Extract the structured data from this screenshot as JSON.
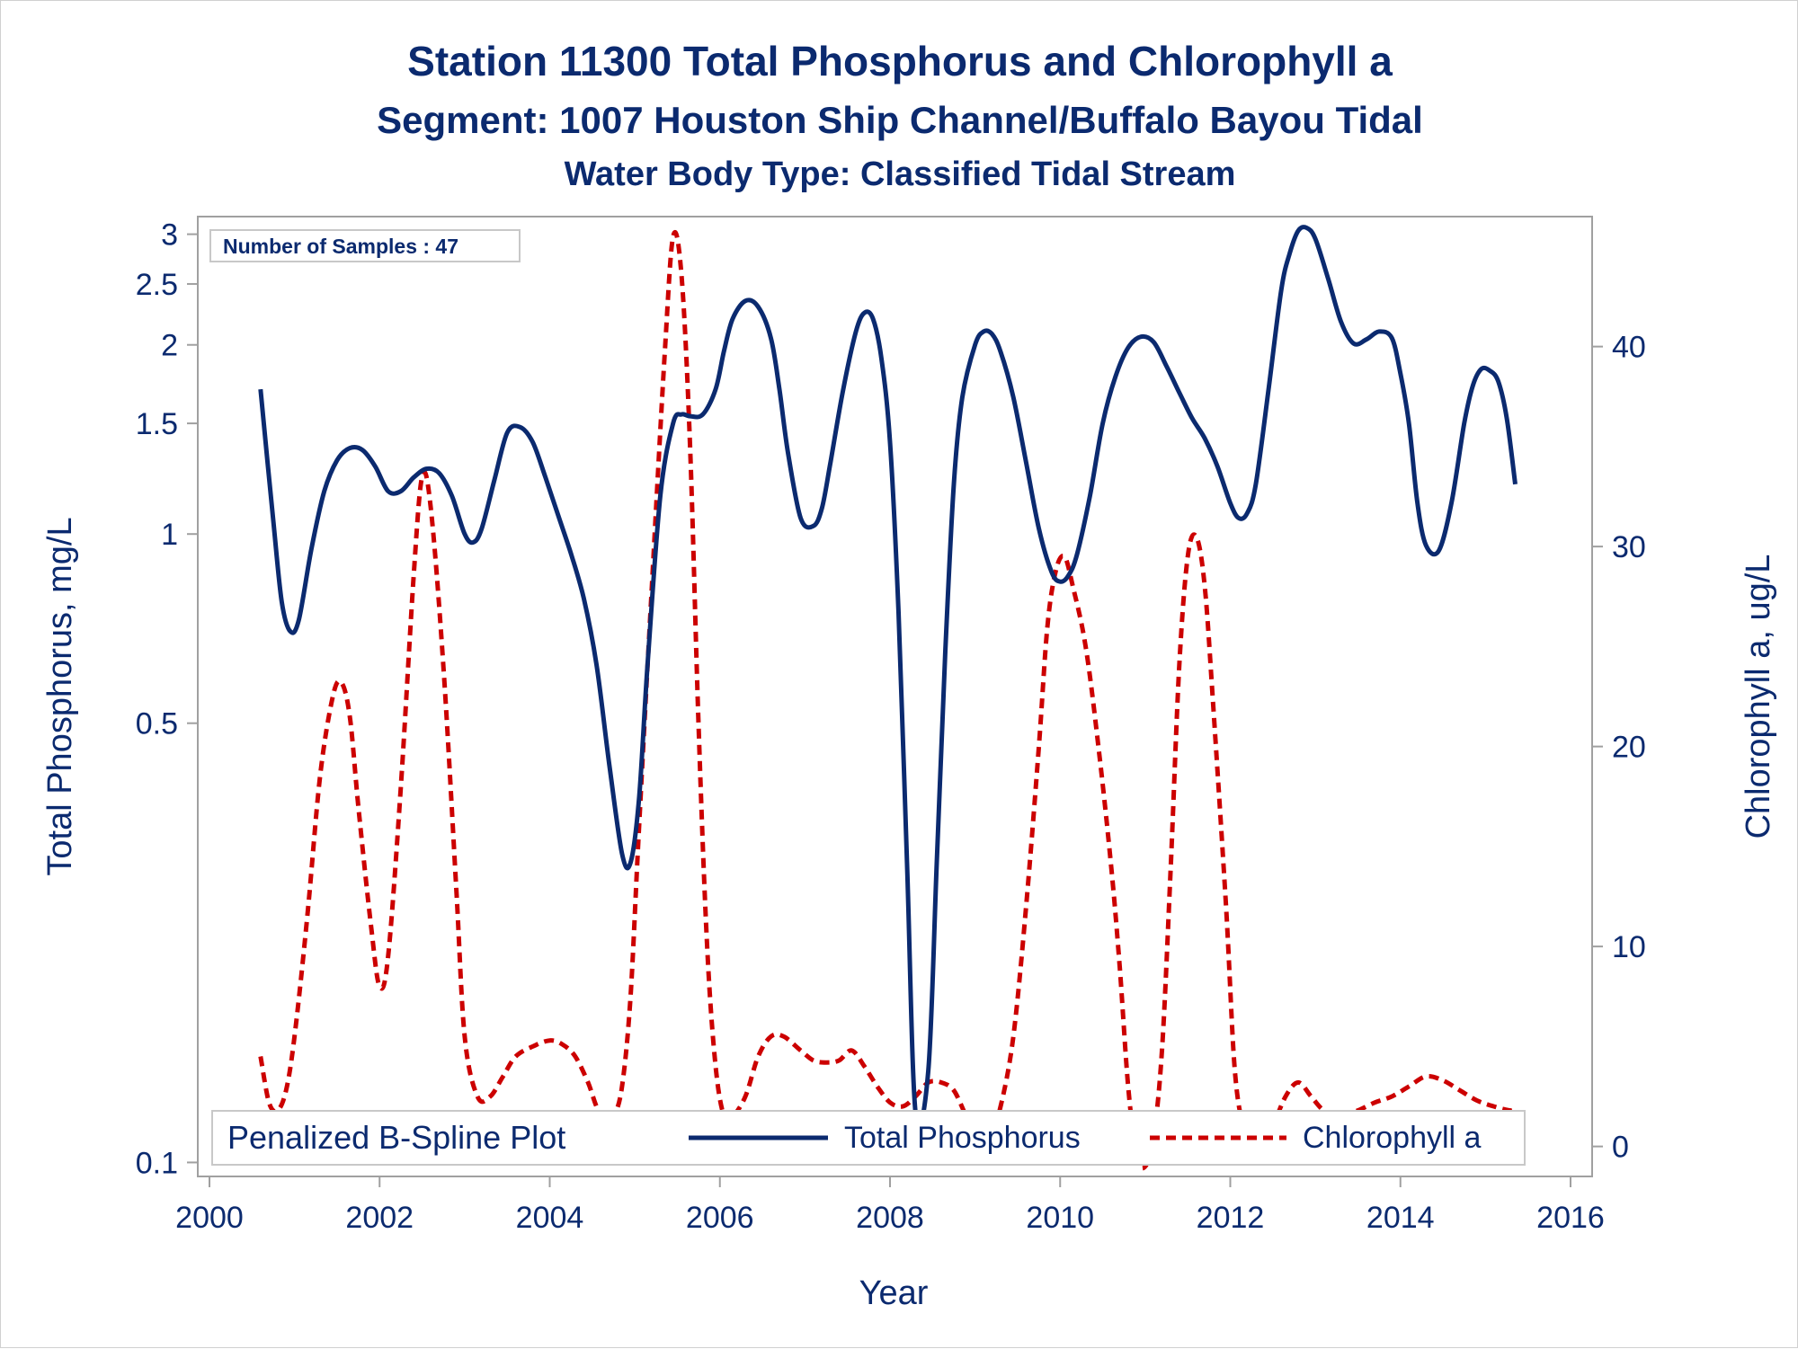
{
  "titles": {
    "line1": "Station 11300  Total Phosphorus and Chlorophyll a",
    "line2": "Segment: 1007  Houston Ship Channel/Buffalo Bayou Tidal",
    "line3": "Water Body Type: Classified Tidal Stream"
  },
  "inset_label": "Number of Samples : 47",
  "legend": {
    "title": "Penalized B-Spline Plot",
    "series1": "Total Phosphorus",
    "series2": "Chlorophyll a"
  },
  "colors": {
    "phosphorus": "#0b2a6f",
    "chlorophyll": "#cc0000",
    "text": "#0b2a6f",
    "axis": "#a0a0a0"
  },
  "chart_data": {
    "type": "line",
    "title": "Station 11300  Total Phosphorus and Chlorophyll a",
    "xlabel": "Year",
    "ylabel": "Total Phosphorus, mg/L",
    "y2label": "Chlorophyll a, ug/L",
    "xlim": [
      2000,
      2016
    ],
    "ylim": [
      0.095,
      3.2
    ],
    "yscale": "log",
    "y2lim": [
      -1.5,
      46.5
    ],
    "xticks": [
      "2000",
      "2002",
      "2004",
      "2006",
      "2008",
      "2010",
      "2012",
      "2014",
      "2016"
    ],
    "yticks": [
      "0.1",
      "0.5",
      "1",
      "1.5",
      "2",
      "2.5",
      "3"
    ],
    "y2ticks": [
      "0",
      "10",
      "20",
      "30",
      "40"
    ],
    "grid": false,
    "legend_position": "bottom-inside",
    "series": [
      {
        "name": "Total Phosphorus",
        "axis": "left",
        "style": "solid",
        "x": [
          2000.6,
          2000.75,
          2000.85,
          2000.95,
          2001.05,
          2001.2,
          2001.35,
          2001.5,
          2001.65,
          2001.8,
          2001.95,
          2002.1,
          2002.25,
          2002.4,
          2002.55,
          2002.7,
          2002.85,
          2003.0,
          2003.1,
          2003.2,
          2003.35,
          2003.5,
          2003.65,
          2003.8,
          2003.95,
          2004.1,
          2004.25,
          2004.4,
          2004.55,
          2004.7,
          2004.85,
          2004.95,
          2005.05,
          2005.15,
          2005.3,
          2005.45,
          2005.55,
          2005.65,
          2005.8,
          2005.95,
          2006.05,
          2006.15,
          2006.3,
          2006.45,
          2006.6,
          2006.7,
          2006.8,
          2006.95,
          2007.1,
          2007.2,
          2007.3,
          2007.45,
          2007.6,
          2007.7,
          2007.8,
          2007.9,
          2008.0,
          2008.1,
          2008.2,
          2008.3,
          2008.45,
          2008.55,
          2008.65,
          2008.75,
          2008.85,
          2009.0,
          2009.1,
          2009.2,
          2009.3,
          2009.45,
          2009.6,
          2009.75,
          2009.9,
          2010.0,
          2010.1,
          2010.2,
          2010.35,
          2010.5,
          2010.65,
          2010.8,
          2010.95,
          2011.1,
          2011.25,
          2011.4,
          2011.55,
          2011.7,
          2011.85,
          2012.0,
          2012.1,
          2012.2,
          2012.3,
          2012.45,
          2012.6,
          2012.7,
          2012.8,
          2012.9,
          2013.0,
          2013.15,
          2013.3,
          2013.45,
          2013.6,
          2013.75,
          2013.9,
          2014.0,
          2014.1,
          2014.2,
          2014.3,
          2014.45,
          2014.6,
          2014.75,
          2014.85,
          2014.95,
          2015.05,
          2015.15,
          2015.25,
          2015.35
        ],
        "values": [
          1.7,
          1.05,
          0.78,
          0.7,
          0.73,
          0.95,
          1.17,
          1.31,
          1.37,
          1.36,
          1.28,
          1.17,
          1.17,
          1.23,
          1.27,
          1.25,
          1.15,
          1.0,
          0.97,
          1.02,
          1.22,
          1.45,
          1.48,
          1.4,
          1.23,
          1.07,
          0.93,
          0.79,
          0.62,
          0.43,
          0.31,
          0.3,
          0.38,
          0.62,
          1.15,
          1.5,
          1.55,
          1.54,
          1.55,
          1.7,
          1.96,
          2.2,
          2.35,
          2.3,
          2.05,
          1.7,
          1.35,
          1.06,
          1.03,
          1.1,
          1.3,
          1.7,
          2.1,
          2.25,
          2.2,
          1.9,
          1.4,
          0.75,
          0.3,
          0.12,
          0.14,
          0.3,
          0.65,
          1.2,
          1.65,
          2.0,
          2.1,
          2.08,
          1.95,
          1.65,
          1.3,
          1.02,
          0.87,
          0.84,
          0.86,
          0.93,
          1.15,
          1.5,
          1.78,
          1.98,
          2.06,
          2.02,
          1.85,
          1.68,
          1.53,
          1.42,
          1.28,
          1.12,
          1.06,
          1.08,
          1.2,
          1.7,
          2.45,
          2.8,
          3.04,
          3.07,
          2.95,
          2.55,
          2.18,
          2.01,
          2.04,
          2.1,
          2.05,
          1.8,
          1.5,
          1.12,
          0.96,
          0.94,
          1.12,
          1.5,
          1.72,
          1.83,
          1.82,
          1.75,
          1.53,
          1.2
        ]
      },
      {
        "name": "Chlorophyll a",
        "axis": "right",
        "style": "dashed",
        "x": [
          2000.6,
          2000.7,
          2000.8,
          2000.9,
          2001.0,
          2001.15,
          2001.3,
          2001.45,
          2001.55,
          2001.65,
          2001.75,
          2001.9,
          2002.0,
          2002.1,
          2002.25,
          2002.4,
          2002.5,
          2002.6,
          2002.75,
          2002.9,
          2003.0,
          2003.15,
          2003.3,
          2003.45,
          2003.6,
          2003.8,
          2004.0,
          2004.15,
          2004.3,
          2004.45,
          2004.55,
          2004.65,
          2004.75,
          2004.85,
          2004.95,
          2005.05,
          2005.2,
          2005.35,
          2005.45,
          2005.55,
          2005.65,
          2005.75,
          2005.85,
          2005.95,
          2006.05,
          2006.15,
          2006.3,
          2006.45,
          2006.6,
          2006.75,
          2006.95,
          2007.1,
          2007.25,
          2007.4,
          2007.55,
          2007.7,
          2007.85,
          2008.0,
          2008.15,
          2008.3,
          2008.45,
          2008.6,
          2008.75,
          2008.9,
          2009.0,
          2009.1,
          2009.2,
          2009.3,
          2009.45,
          2009.6,
          2009.75,
          2009.85,
          2009.95,
          2010.05,
          2010.15,
          2010.3,
          2010.45,
          2010.6,
          2010.7,
          2010.8,
          2010.9,
          2011.0,
          2011.1,
          2011.2,
          2011.3,
          2011.4,
          2011.5,
          2011.6,
          2011.7,
          2011.8,
          2011.95,
          2012.05,
          2012.15,
          2012.25,
          2012.35,
          2012.5,
          2012.65,
          2012.8,
          2012.95,
          2013.1,
          2013.3,
          2013.5,
          2013.7,
          2013.9,
          2014.1,
          2014.3,
          2014.5,
          2014.7,
          2014.9,
          2015.1,
          2015.3,
          2015.35
        ],
        "values": [
          4.5,
          2.2,
          1.8,
          2.8,
          5.5,
          11.5,
          18.5,
          22.5,
          23.2,
          21.5,
          17.0,
          11.0,
          8.0,
          9.5,
          18.0,
          28.5,
          33.5,
          32.0,
          24.0,
          13.0,
          5.5,
          2.5,
          2.5,
          3.5,
          4.5,
          5.0,
          5.3,
          5.1,
          4.5,
          3.2,
          2.0,
          1.3,
          1.5,
          3.0,
          7.5,
          16.0,
          28.0,
          39.5,
          45.5,
          43.5,
          35.0,
          21.0,
          10.0,
          4.0,
          1.5,
          1.5,
          2.5,
          4.5,
          5.5,
          5.5,
          4.8,
          4.3,
          4.2,
          4.3,
          4.8,
          4.0,
          3.0,
          2.2,
          2.0,
          2.5,
          3.2,
          3.2,
          2.8,
          1.5,
          1.0,
          0.8,
          1.0,
          2.0,
          5.5,
          12.0,
          20.0,
          26.0,
          28.8,
          29.5,
          28.0,
          25.0,
          20.0,
          14.0,
          9.0,
          3.0,
          -0.5,
          -1.0,
          0.5,
          5.0,
          14.0,
          24.0,
          29.5,
          30.5,
          28.0,
          22.0,
          12.0,
          4.0,
          1.0,
          0.0,
          -0.3,
          1.0,
          2.5,
          3.2,
          2.5,
          1.8,
          1.5,
          1.8,
          2.2,
          2.5,
          3.0,
          3.5,
          3.3,
          2.8,
          2.3,
          2.0,
          1.8,
          2.0
        ]
      }
    ]
  }
}
